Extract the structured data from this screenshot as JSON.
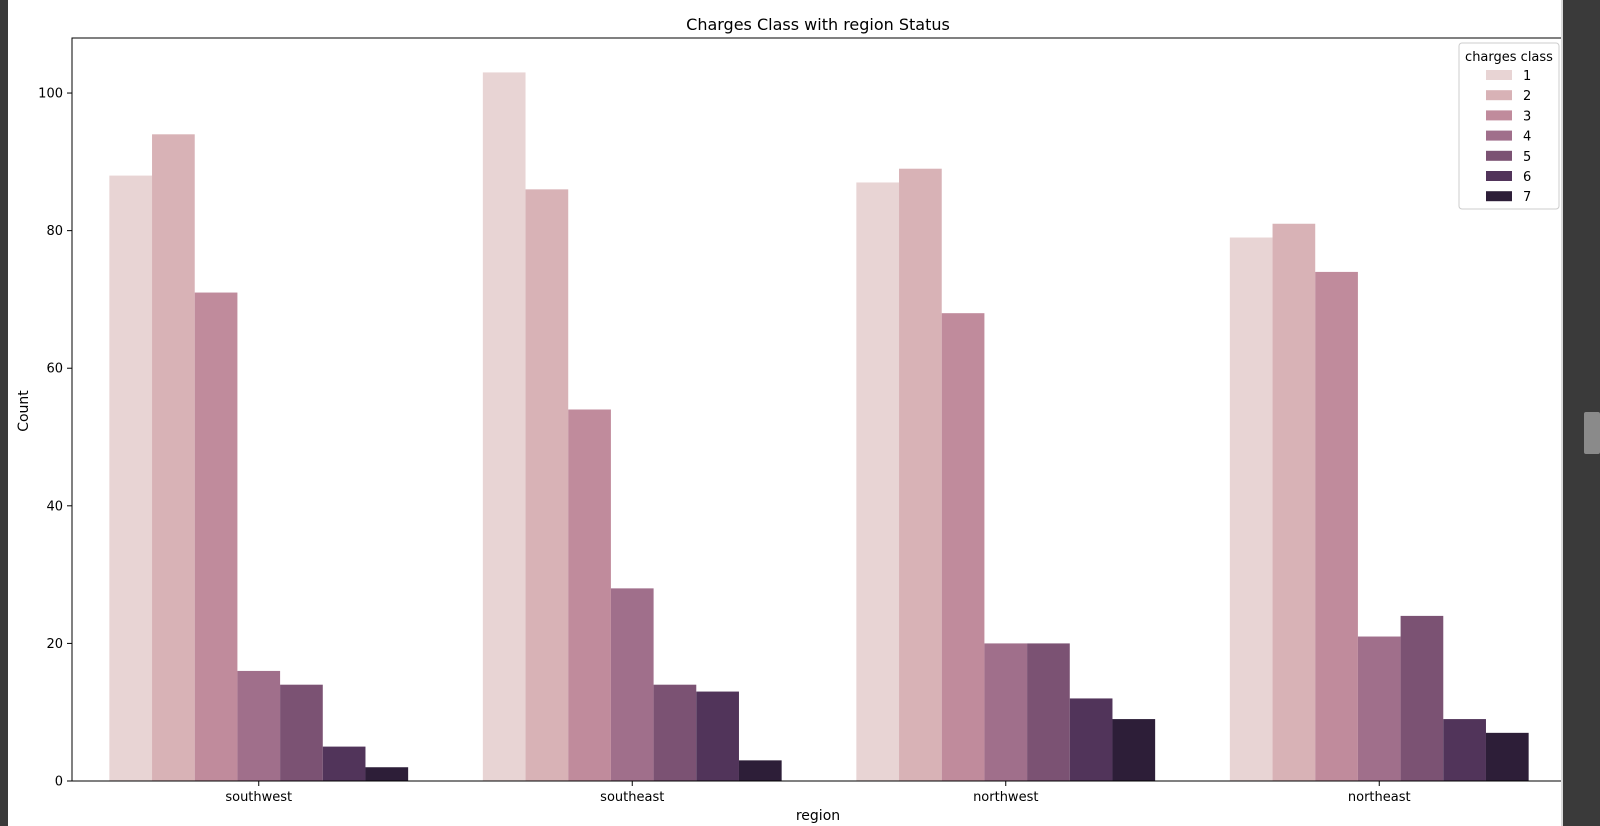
{
  "chart_data": {
    "type": "bar",
    "title": "Charges Class with region Status",
    "xlabel": "region",
    "ylabel": "Count",
    "categories": [
      "southwest",
      "southeast",
      "northwest",
      "northeast"
    ],
    "ylim": [
      0,
      108
    ],
    "yticks": [
      0,
      20,
      40,
      60,
      80,
      100
    ],
    "legend": {
      "title": "charges class",
      "position": "top-right"
    },
    "series": [
      {
        "name": "1",
        "color": "#e8d4d4",
        "values": [
          88,
          103,
          87,
          79
        ]
      },
      {
        "name": "2",
        "color": "#d8b2b6",
        "values": [
          94,
          86,
          89,
          81
        ]
      },
      {
        "name": "3",
        "color": "#c08b9c",
        "values": [
          71,
          54,
          68,
          74
        ]
      },
      {
        "name": "4",
        "color": "#a06f8b",
        "values": [
          16,
          28,
          20,
          21
        ]
      },
      {
        "name": "5",
        "color": "#7b5273",
        "values": [
          14,
          14,
          20,
          24
        ]
      },
      {
        "name": "6",
        "color": "#51345a",
        "values": [
          5,
          13,
          12,
          9
        ]
      },
      {
        "name": "7",
        "color": "#2d1e38",
        "values": [
          2,
          3,
          9,
          7
        ]
      }
    ]
  }
}
